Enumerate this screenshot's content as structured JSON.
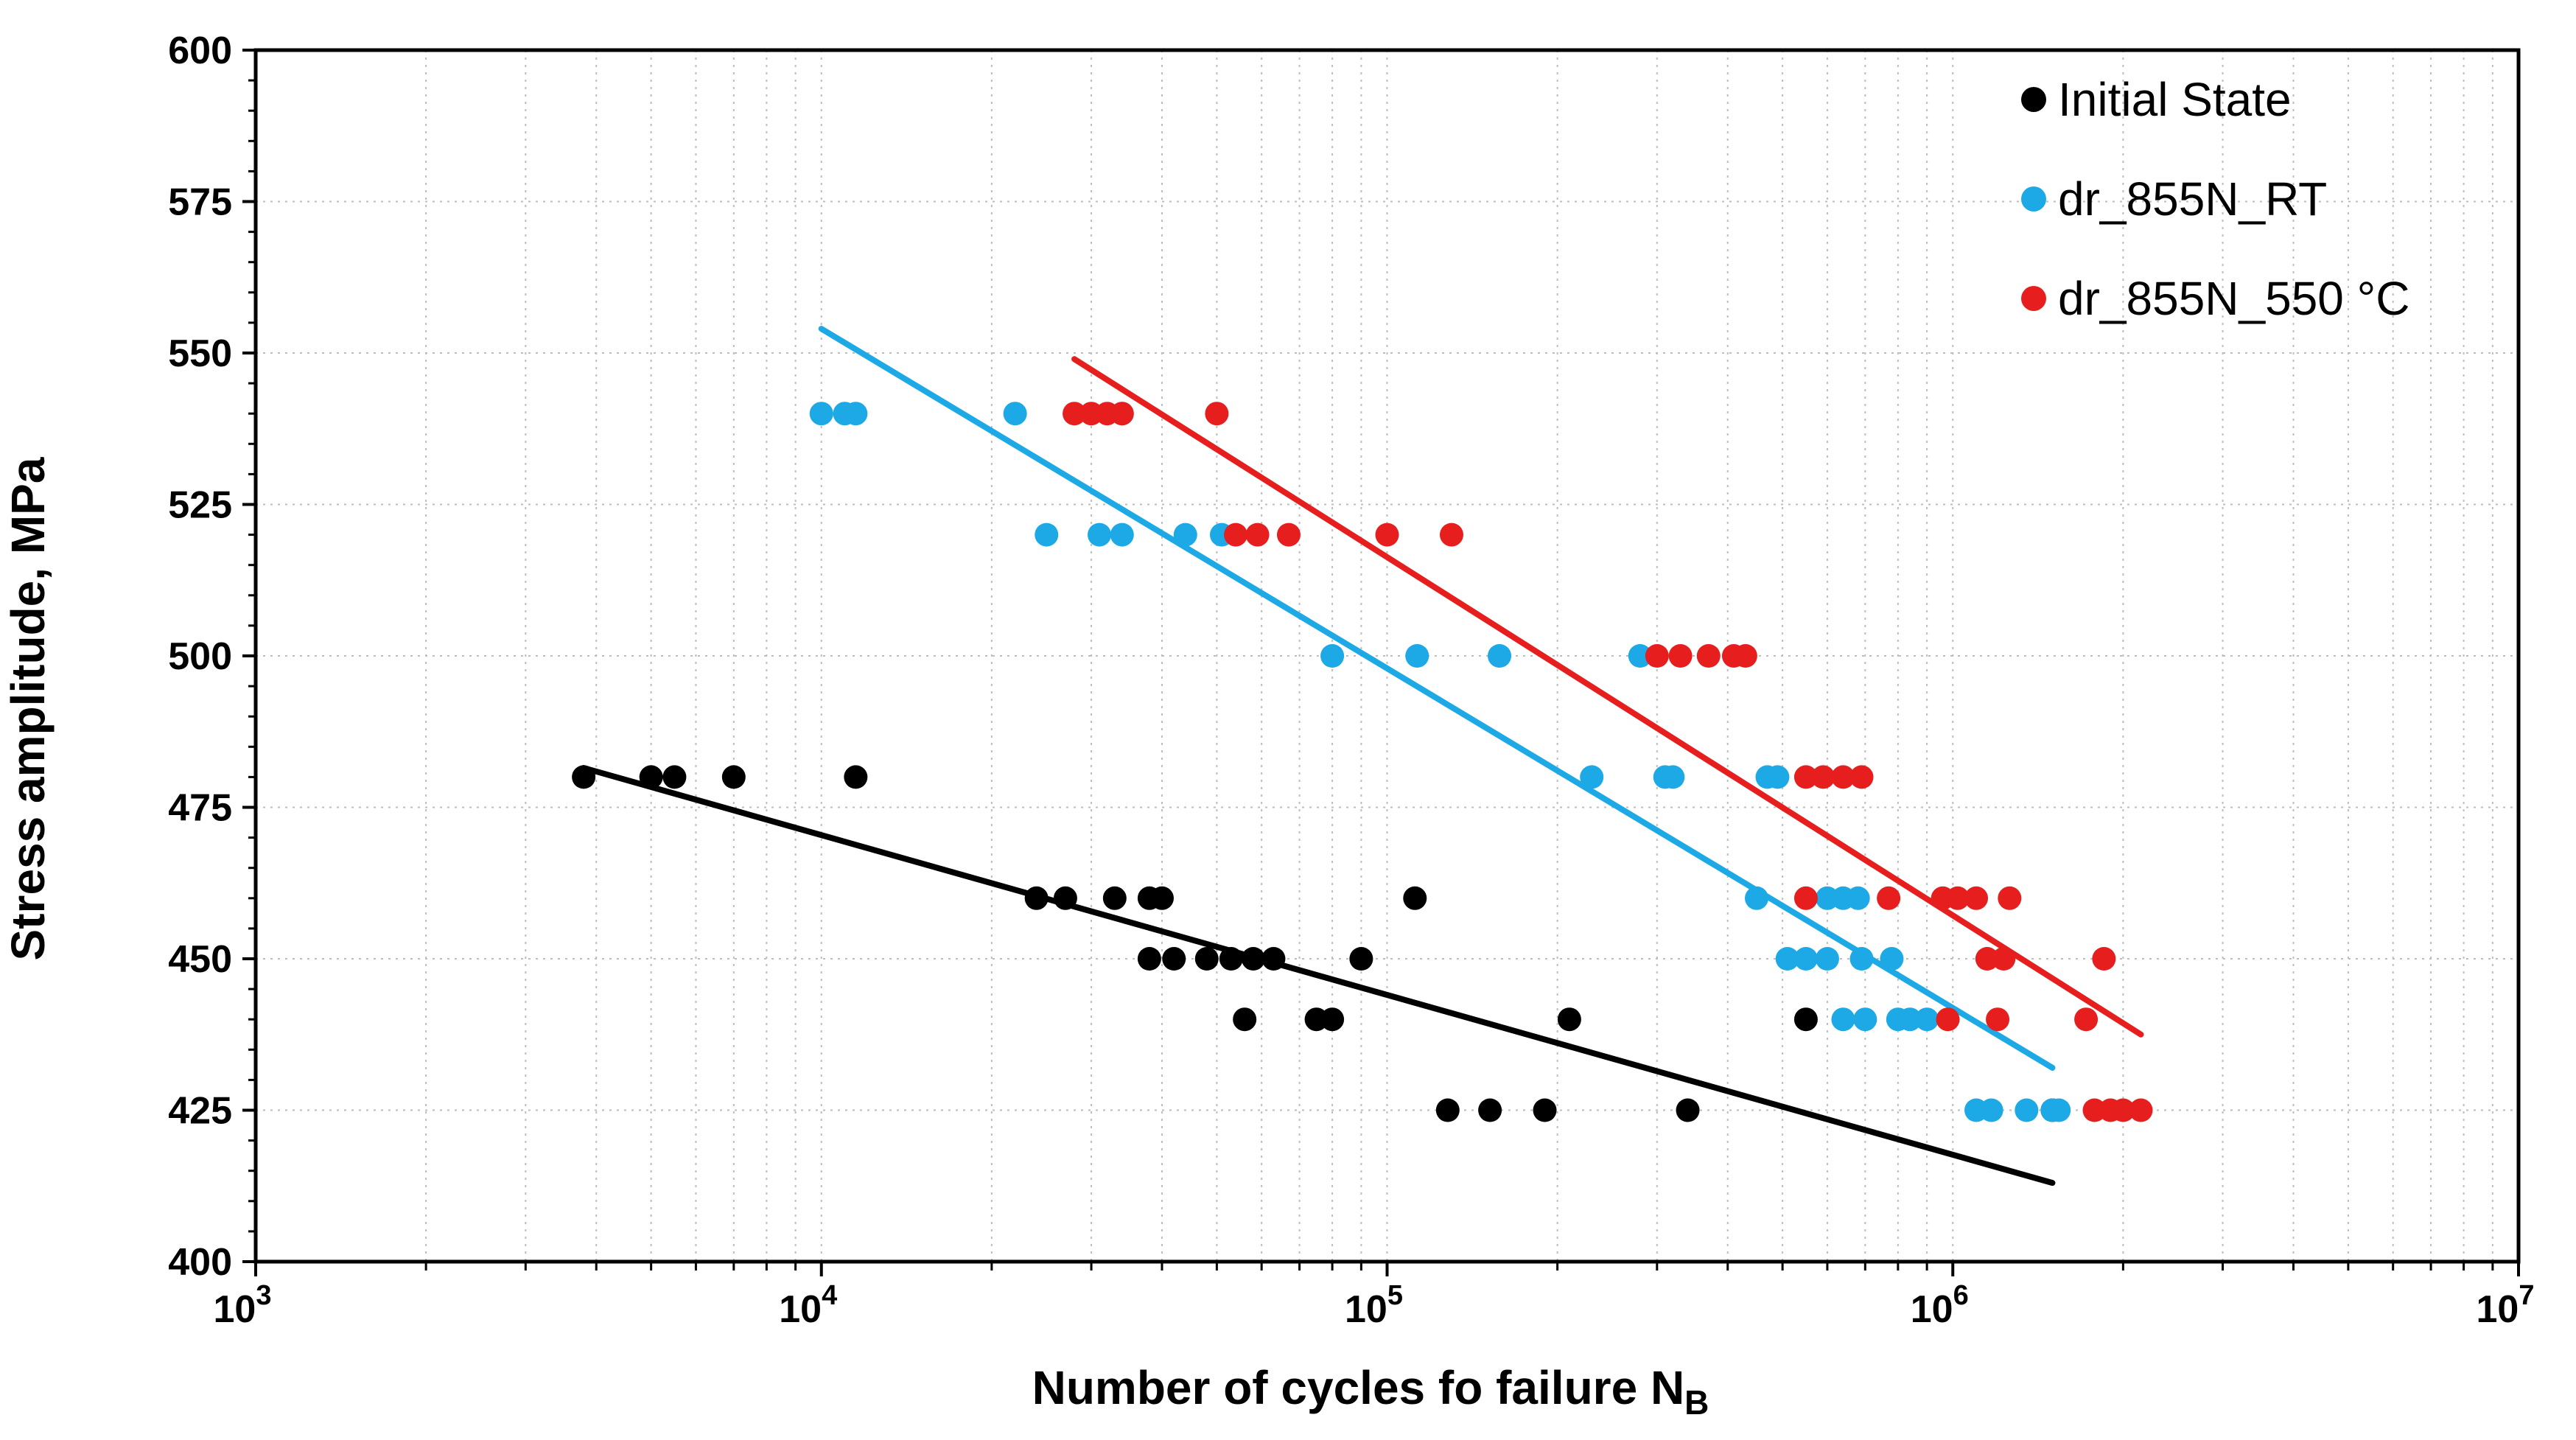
{
  "chart_data": {
    "type": "scatter",
    "xlabel": "Number of cycles fo failure N",
    "xlabel_subscript": "B",
    "ylabel": "Stress amplitude, MPa",
    "x_scale": "log",
    "xlim": [
      1000,
      10000000
    ],
    "ylim": [
      400,
      600
    ],
    "x_ticks": [
      {
        "base": "10",
        "exp": "3"
      },
      {
        "base": "10",
        "exp": "4"
      },
      {
        "base": "10",
        "exp": "5"
      },
      {
        "base": "10",
        "exp": "6"
      },
      {
        "base": "10",
        "exp": "7"
      }
    ],
    "y_ticks": [
      "400",
      "425",
      "450",
      "475",
      "500",
      "525",
      "550",
      "575",
      "600"
    ],
    "grid": "dotted",
    "legend_position": "top-right",
    "series": [
      {
        "name": "Initial State",
        "color": "#000000",
        "points": [
          [
            3800,
            480
          ],
          [
            5000,
            480
          ],
          [
            5500,
            480
          ],
          [
            7000,
            480
          ],
          [
            11500,
            480
          ],
          [
            24000,
            460
          ],
          [
            27000,
            460
          ],
          [
            33000,
            460
          ],
          [
            38000,
            460
          ],
          [
            40000,
            460
          ],
          [
            112000,
            460
          ],
          [
            38000,
            450
          ],
          [
            42000,
            450
          ],
          [
            48000,
            450
          ],
          [
            53000,
            450
          ],
          [
            58000,
            450
          ],
          [
            63000,
            450
          ],
          [
            90000,
            450
          ],
          [
            56000,
            440
          ],
          [
            75000,
            440
          ],
          [
            80000,
            440
          ],
          [
            210000,
            440
          ],
          [
            550000,
            440
          ],
          [
            128000,
            425
          ],
          [
            152000,
            425
          ],
          [
            190000,
            425
          ],
          [
            340000,
            425
          ],
          [
            1500000,
            425
          ]
        ],
        "fit": {
          "x": [
            3800,
            1500000
          ],
          "y": [
            481.5,
            413
          ]
        }
      },
      {
        "name": "dr_855N_RT",
        "color": "#1CA9E6",
        "points": [
          [
            10000,
            540
          ],
          [
            11000,
            540
          ],
          [
            11500,
            540
          ],
          [
            22000,
            540
          ],
          [
            34000,
            540
          ],
          [
            25000,
            520
          ],
          [
            31000,
            520
          ],
          [
            34000,
            520
          ],
          [
            44000,
            520
          ],
          [
            51000,
            520
          ],
          [
            80000,
            500
          ],
          [
            113000,
            500
          ],
          [
            158000,
            500
          ],
          [
            280000,
            500
          ],
          [
            230000,
            480
          ],
          [
            310000,
            480
          ],
          [
            320000,
            480
          ],
          [
            470000,
            480
          ],
          [
            490000,
            480
          ],
          [
            450000,
            460
          ],
          [
            600000,
            460
          ],
          [
            640000,
            460
          ],
          [
            680000,
            460
          ],
          [
            510000,
            450
          ],
          [
            550000,
            450
          ],
          [
            600000,
            450
          ],
          [
            690000,
            450
          ],
          [
            780000,
            450
          ],
          [
            640000,
            440
          ],
          [
            700000,
            440
          ],
          [
            800000,
            440
          ],
          [
            840000,
            440
          ],
          [
            900000,
            440
          ],
          [
            1100000,
            425
          ],
          [
            1170000,
            425
          ],
          [
            1350000,
            425
          ],
          [
            1500000,
            425
          ],
          [
            1540000,
            425
          ]
        ],
        "fit": {
          "x": [
            10000,
            1500000
          ],
          "y": [
            554,
            432
          ]
        }
      },
      {
        "name": "dr_855N_550 °C",
        "color": "#E61E1E",
        "points": [
          [
            28000,
            540
          ],
          [
            30000,
            540
          ],
          [
            32000,
            540
          ],
          [
            34000,
            540
          ],
          [
            50000,
            540
          ],
          [
            54000,
            520
          ],
          [
            59000,
            520
          ],
          [
            67000,
            520
          ],
          [
            100000,
            520
          ],
          [
            130000,
            520
          ],
          [
            300000,
            500
          ],
          [
            330000,
            500
          ],
          [
            370000,
            500
          ],
          [
            410000,
            500
          ],
          [
            430000,
            500
          ],
          [
            550000,
            480
          ],
          [
            590000,
            480
          ],
          [
            640000,
            480
          ],
          [
            690000,
            480
          ],
          [
            550000,
            460
          ],
          [
            770000,
            460
          ],
          [
            960000,
            460
          ],
          [
            1020000,
            460
          ],
          [
            1100000,
            460
          ],
          [
            1260000,
            460
          ],
          [
            1150000,
            450
          ],
          [
            1230000,
            450
          ],
          [
            1850000,
            450
          ],
          [
            980000,
            440
          ],
          [
            1200000,
            440
          ],
          [
            1720000,
            440
          ],
          [
            1780000,
            425
          ],
          [
            1900000,
            425
          ],
          [
            2000000,
            425
          ],
          [
            2150000,
            425
          ]
        ],
        "fit": {
          "x": [
            28000,
            2150000
          ],
          "y": [
            549,
            437.5
          ]
        }
      }
    ]
  }
}
